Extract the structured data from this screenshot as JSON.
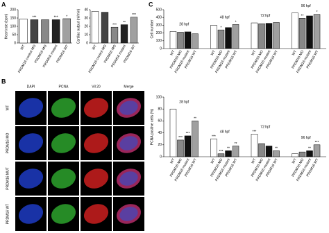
{
  "panels": [
    "A",
    "B",
    "C"
  ],
  "image_panel": {
    "columns": [
      "DAPI",
      "PCNA",
      "Vil 20",
      "Merge"
    ],
    "rows": [
      "WT",
      "PRDM16 MO",
      "PRDM16 MUT",
      "PRDM16 WT"
    ]
  },
  "chart_data": [
    {
      "type": "bar",
      "y_label": "Heart rate (bpm)",
      "categories": [
        "WT",
        "PRDM16 control MO",
        "PRDM16 MO",
        "PRDM16 mutant",
        "PRDM16 WT"
      ],
      "values": [
        145,
        140,
        140,
        140,
        146
      ],
      "labels": [
        null,
        "***",
        null,
        "***",
        "*"
      ],
      "colors": [
        "#ffffff",
        "#444444",
        "#888888",
        "#222222",
        "#a0a0a0"
      ],
      "ylim": [
        0,
        200
      ],
      "yticks": [
        0,
        50,
        100,
        150,
        200
      ]
    },
    {
      "type": "bar",
      "y_label": "Cardiac output (nl/min)",
      "categories": [
        "WT",
        "PRDM16 control MO",
        "PRDM16 MO",
        "PRDM16 mutant",
        "PRDM16 WT"
      ],
      "values": [
        38,
        37,
        19,
        22,
        31
      ],
      "labels": [
        null,
        null,
        "***",
        "**",
        "***"
      ],
      "colors": [
        "#ffffff",
        "#444444",
        "#888888",
        "#222222",
        "#a0a0a0"
      ],
      "ylim": [
        0,
        40
      ],
      "yticks": [
        0,
        10,
        20,
        30,
        40
      ]
    },
    {
      "type": "grouped_bar",
      "y_label": "Cell number",
      "categories": [
        "28 hpf",
        "48 hpf",
        "72 hpf",
        "96 hpf"
      ],
      "series": [
        {
          "name": "WT",
          "color": "#ffffff",
          "values": [
            220,
            300,
            330,
            460
          ],
          "labels": [
            null,
            null,
            null,
            null
          ]
        },
        {
          "name": "PRDM16 MO",
          "color": "#888888",
          "values": [
            210,
            240,
            320,
            390
          ],
          "labels": [
            null,
            "*",
            null,
            "**"
          ]
        },
        {
          "name": "PRDM16 mutant",
          "color": "#111111",
          "values": [
            215,
            270,
            325,
            420
          ],
          "labels": [
            null,
            null,
            null,
            null
          ]
        },
        {
          "name": "PRDM16 WT",
          "color": "#a0a0a0",
          "values": [
            190,
            310,
            335,
            440
          ],
          "labels": [
            null,
            "*",
            null,
            "*"
          ]
        }
      ],
      "ylim": [
        0,
        500
      ],
      "yticks": [
        0,
        100,
        200,
        300,
        400,
        500
      ]
    },
    {
      "type": "grouped_bar",
      "y_label": "PCNA positive cells (%)",
      "categories": [
        "28 hpf",
        "48 hpf",
        "72 hpf",
        "96 hpf"
      ],
      "series": [
        {
          "name": "WT",
          "color": "#ffffff",
          "values": [
            80,
            30,
            38,
            5
          ],
          "labels": [
            null,
            "***",
            "***",
            null
          ]
        },
        {
          "name": "PRDM16 MO",
          "color": "#888888",
          "values": [
            28,
            5,
            22,
            8
          ],
          "labels": [
            "***",
            "***",
            null,
            null
          ]
        },
        {
          "name": "PRDM16 mutant",
          "color": "#111111",
          "values": [
            35,
            10,
            18,
            10
          ],
          "labels": [
            "***",
            "**",
            null,
            "**"
          ]
        },
        {
          "name": "PRDM16 WT",
          "color": "#a0a0a0",
          "values": [
            60,
            18,
            10,
            20
          ],
          "labels": [
            "**",
            "**",
            "**",
            "***"
          ]
        }
      ],
      "ylim": [
        0,
        100
      ],
      "yticks": [
        0,
        20,
        40,
        60,
        80,
        100
      ]
    }
  ]
}
